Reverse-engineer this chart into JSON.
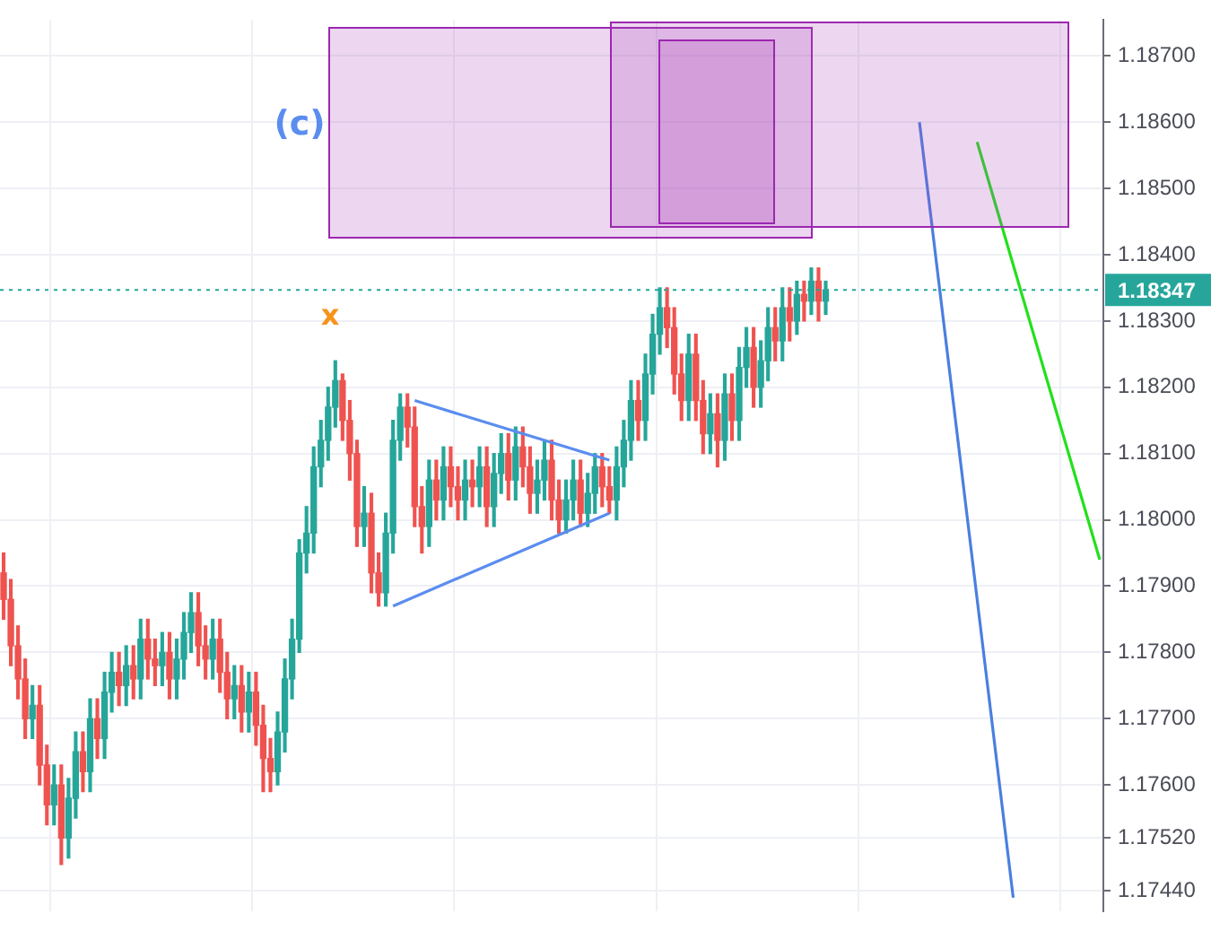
{
  "chart_data": {
    "type": "candlestick",
    "categories": [
      null,
      null,
      null,
      null,
      null,
      null,
      null,
      null,
      null,
      null,
      null,
      null,
      null,
      null,
      null,
      null,
      null,
      null,
      null,
      null,
      null,
      null,
      null,
      null,
      null,
      null,
      null,
      null,
      null,
      null,
      null,
      null,
      null,
      null,
      null,
      null,
      null,
      null,
      null,
      null,
      null,
      null,
      null,
      null,
      null,
      null,
      null,
      null,
      null,
      null,
      null,
      null,
      null,
      null,
      null,
      null,
      null,
      null,
      null,
      null,
      null,
      null,
      null,
      null,
      null,
      null,
      null,
      null,
      null,
      null,
      null,
      null,
      null,
      null,
      null,
      null,
      null,
      null,
      null,
      null,
      null,
      null,
      null,
      null,
      null,
      null,
      null,
      null,
      null,
      null,
      null,
      null,
      null,
      null,
      null,
      null,
      null,
      null,
      null,
      null,
      null,
      null,
      null,
      null,
      null,
      null,
      null,
      null,
      null,
      null,
      null,
      null,
      null,
      null,
      null,
      null,
      null,
      null,
      null,
      null,
      null,
      null,
      null,
      null,
      null,
      null,
      null,
      null,
      null,
      null,
      null,
      null,
      null,
      null,
      null,
      null,
      null,
      null,
      null,
      null,
      null,
      null,
      null,
      null,
      null,
      null,
      null,
      null,
      null,
      null,
      null,
      null,
      null
    ],
    "ohlc": [
      [
        1.1792,
        1.1795,
        1.1785,
        1.1788
      ],
      [
        1.1788,
        1.1791,
        1.1778,
        1.1781
      ],
      [
        1.1781,
        1.1784,
        1.1773,
        1.1776
      ],
      [
        1.1776,
        1.1779,
        1.1767,
        1.177
      ],
      [
        1.177,
        1.1775,
        1.1767,
        1.1772
      ],
      [
        1.1772,
        1.1775,
        1.176,
        1.1763
      ],
      [
        1.1763,
        1.1766,
        1.1754,
        1.1757
      ],
      [
        1.1757,
        1.1763,
        1.1754,
        1.176
      ],
      [
        1.176,
        1.1763,
        1.1748,
        1.1752
      ],
      [
        1.1752,
        1.1761,
        1.1749,
        1.1758
      ],
      [
        1.1758,
        1.1768,
        1.1755,
        1.1765
      ],
      [
        1.1765,
        1.1768,
        1.1759,
        1.1762
      ],
      [
        1.1762,
        1.1773,
        1.1759,
        1.177
      ],
      [
        1.177,
        1.1773,
        1.1764,
        1.1767
      ],
      [
        1.1767,
        1.1777,
        1.1764,
        1.1774
      ],
      [
        1.1774,
        1.178,
        1.1771,
        1.1777
      ],
      [
        1.1777,
        1.178,
        1.1772,
        1.1775
      ],
      [
        1.1775,
        1.1781,
        1.1772,
        1.1778
      ],
      [
        1.1778,
        1.1781,
        1.1773,
        1.1776
      ],
      [
        1.1776,
        1.1785,
        1.1773,
        1.1782
      ],
      [
        1.1782,
        1.1785,
        1.1776,
        1.1779
      ],
      [
        1.1779,
        1.1782,
        1.1775,
        1.1778
      ],
      [
        1.1778,
        1.1783,
        1.1775,
        1.178
      ],
      [
        1.178,
        1.1783,
        1.1773,
        1.1776
      ],
      [
        1.1776,
        1.1782,
        1.1773,
        1.1779
      ],
      [
        1.1779,
        1.1786,
        1.1776,
        1.1783
      ],
      [
        1.1783,
        1.1789,
        1.178,
        1.1786
      ],
      [
        1.1786,
        1.1789,
        1.1778,
        1.1781
      ],
      [
        1.1781,
        1.1784,
        1.1776,
        1.1779
      ],
      [
        1.1779,
        1.1785,
        1.1776,
        1.1782
      ],
      [
        1.1782,
        1.1785,
        1.1774,
        1.1777
      ],
      [
        1.1777,
        1.178,
        1.177,
        1.1773
      ],
      [
        1.1773,
        1.1778,
        1.177,
        1.1775
      ],
      [
        1.1775,
        1.1778,
        1.1768,
        1.1771
      ],
      [
        1.1771,
        1.1777,
        1.1768,
        1.1774
      ],
      [
        1.1774,
        1.1777,
        1.1766,
        1.1769
      ],
      [
        1.1769,
        1.1772,
        1.1759,
        1.1764
      ],
      [
        1.1764,
        1.1767,
        1.1759,
        1.1762
      ],
      [
        1.1762,
        1.1771,
        1.176,
        1.1768
      ],
      [
        1.1768,
        1.1779,
        1.1765,
        1.1776
      ],
      [
        1.1776,
        1.1785,
        1.1773,
        1.1782
      ],
      [
        1.1782,
        1.1797,
        1.178,
        1.1795
      ],
      [
        1.1795,
        1.1802,
        1.1792,
        1.1798
      ],
      [
        1.1798,
        1.1811,
        1.1795,
        1.1808
      ],
      [
        1.1808,
        1.1815,
        1.1805,
        1.1812
      ],
      [
        1.1812,
        1.182,
        1.1809,
        1.1817
      ],
      [
        1.1817,
        1.1824,
        1.1814,
        1.1821
      ],
      [
        1.1821,
        1.1822,
        1.1812,
        1.1815
      ],
      [
        1.1815,
        1.1818,
        1.1806,
        1.181
      ],
      [
        1.181,
        1.1812,
        1.1796,
        1.1799
      ],
      [
        1.1799,
        1.1805,
        1.1796,
        1.1801
      ],
      [
        1.1801,
        1.1804,
        1.1789,
        1.1792
      ],
      [
        1.1792,
        1.1795,
        1.1787,
        1.1789
      ],
      [
        1.1789,
        1.1801,
        1.1787,
        1.1798
      ],
      [
        1.1798,
        1.1815,
        1.1795,
        1.1812
      ],
      [
        1.1812,
        1.1819,
        1.1809,
        1.1817
      ],
      [
        1.1817,
        1.1819,
        1.1811,
        1.1814
      ],
      [
        1.1814,
        1.1817,
        1.1799,
        1.1802
      ],
      [
        1.1802,
        1.1805,
        1.1795,
        1.1799
      ],
      [
        1.1799,
        1.1809,
        1.1796,
        1.1806
      ],
      [
        1.1806,
        1.1809,
        1.18,
        1.1803
      ],
      [
        1.1803,
        1.1811,
        1.18,
        1.1808
      ],
      [
        1.1808,
        1.1811,
        1.1802,
        1.1805
      ],
      [
        1.1805,
        1.1808,
        1.18,
        1.1803
      ],
      [
        1.1803,
        1.1809,
        1.18,
        1.1806
      ],
      [
        1.1806,
        1.1809,
        1.1802,
        1.1805
      ],
      [
        1.1805,
        1.1811,
        1.1802,
        1.1808
      ],
      [
        1.1808,
        1.1811,
        1.1799,
        1.1802
      ],
      [
        1.1802,
        1.181,
        1.1799,
        1.1807
      ],
      [
        1.1807,
        1.1813,
        1.1804,
        1.181
      ],
      [
        1.181,
        1.1813,
        1.1803,
        1.1806
      ],
      [
        1.1806,
        1.1814,
        1.1803,
        1.1811
      ],
      [
        1.1811,
        1.1814,
        1.1805,
        1.1808
      ],
      [
        1.1808,
        1.1811,
        1.1801,
        1.1804
      ],
      [
        1.1804,
        1.1809,
        1.1801,
        1.1806
      ],
      [
        1.1806,
        1.1812,
        1.1803,
        1.1809
      ],
      [
        1.1809,
        1.1812,
        1.18,
        1.1803
      ],
      [
        1.1803,
        1.1806,
        1.1798,
        1.18
      ],
      [
        1.18,
        1.1806,
        1.1798,
        1.1803
      ],
      [
        1.1803,
        1.1809,
        1.18,
        1.1806
      ],
      [
        1.1806,
        1.1809,
        1.1799,
        1.1801
      ],
      [
        1.1801,
        1.1807,
        1.1799,
        1.1804
      ],
      [
        1.1804,
        1.181,
        1.1801,
        1.1808
      ],
      [
        1.1808,
        1.181,
        1.1802,
        1.1805
      ],
      [
        1.1805,
        1.1808,
        1.1801,
        1.1803
      ],
      [
        1.1803,
        1.1811,
        1.18,
        1.1808
      ],
      [
        1.1808,
        1.1815,
        1.1805,
        1.1812
      ],
      [
        1.1812,
        1.1821,
        1.1809,
        1.1818
      ],
      [
        1.1818,
        1.1821,
        1.1812,
        1.1815
      ],
      [
        1.1815,
        1.1825,
        1.1812,
        1.1822
      ],
      [
        1.1822,
        1.1831,
        1.1819,
        1.1828
      ],
      [
        1.1828,
        1.1835,
        1.1825,
        1.1832
      ],
      [
        1.1832,
        1.1835,
        1.1826,
        1.1829
      ],
      [
        1.1829,
        1.1832,
        1.1819,
        1.1822
      ],
      [
        1.1822,
        1.1825,
        1.1815,
        1.1818
      ],
      [
        1.1818,
        1.1828,
        1.1815,
        1.1825
      ],
      [
        1.1825,
        1.1828,
        1.1815,
        1.1818
      ],
      [
        1.1818,
        1.1821,
        1.181,
        1.1813
      ],
      [
        1.1813,
        1.1819,
        1.181,
        1.1816
      ],
      [
        1.1816,
        1.1819,
        1.1808,
        1.1812
      ],
      [
        1.1812,
        1.1822,
        1.1809,
        1.1819
      ],
      [
        1.1819,
        1.1822,
        1.1812,
        1.1815
      ],
      [
        1.1815,
        1.1826,
        1.1812,
        1.1823
      ],
      [
        1.1823,
        1.1829,
        1.182,
        1.1826
      ],
      [
        1.1826,
        1.1829,
        1.1817,
        1.182
      ],
      [
        1.182,
        1.1827,
        1.1817,
        1.1824
      ],
      [
        1.1824,
        1.1832,
        1.1821,
        1.1829
      ],
      [
        1.1829,
        1.1832,
        1.1824,
        1.1827
      ],
      [
        1.1827,
        1.1835,
        1.1824,
        1.1832
      ],
      [
        1.1832,
        1.1835,
        1.1827,
        1.183
      ],
      [
        1.183,
        1.1836,
        1.1828,
        1.1834
      ],
      [
        1.1834,
        1.1836,
        1.183,
        1.1833
      ],
      [
        1.1833,
        1.1838,
        1.1831,
        1.1836
      ],
      [
        1.1836,
        1.1838,
        1.183,
        1.1833
      ],
      [
        1.1833,
        1.1836,
        1.1831,
        1.18347
      ],
      null,
      null,
      null,
      null,
      null,
      null,
      null,
      null,
      null,
      null,
      null,
      null,
      null,
      null,
      null,
      null,
      null,
      null,
      null,
      null,
      null,
      null,
      null,
      null,
      null,
      null,
      null,
      null,
      null,
      null,
      null,
      null,
      null,
      null,
      null,
      null,
      null,
      null
    ],
    "series": [
      {
        "type": "line",
        "color": "#5b8def",
        "values": [
          null,
          null,
          null,
          null,
          null,
          null,
          null,
          null,
          null,
          null,
          null,
          null,
          null,
          null,
          null,
          null,
          null,
          null,
          null,
          null,
          null,
          null,
          null,
          null,
          null,
          null,
          null,
          null,
          null,
          null,
          null,
          null,
          null,
          null,
          null,
          null,
          null,
          null,
          null,
          null,
          null,
          null,
          null,
          null,
          null,
          null,
          null,
          null,
          null,
          null,
          null,
          null,
          null,
          null,
          null,
          null,
          null,
          1.1818,
          null,
          null,
          null,
          null,
          null,
          null,
          null,
          null,
          null,
          null,
          null,
          null,
          null,
          null,
          null,
          null,
          null,
          null,
          null,
          null,
          null,
          null,
          null,
          null,
          null,
          null,
          1.1809,
          null,
          null,
          null,
          null,
          null,
          null,
          null,
          null,
          null,
          null,
          null,
          null,
          null,
          null,
          null,
          null,
          null,
          null,
          null,
          null,
          null,
          null,
          null,
          null,
          null,
          null,
          null,
          null,
          null,
          null,
          null,
          null,
          null,
          null,
          null,
          null,
          null,
          null,
          null,
          null,
          null,
          null,
          null,
          null,
          null,
          null,
          null,
          null,
          null,
          null,
          null,
          null,
          null,
          null,
          null,
          null,
          null,
          null,
          null,
          null,
          null,
          null,
          null,
          null,
          null,
          null,
          null,
          null
        ]
      },
      {
        "type": "line",
        "color": "#5b8def",
        "values": [
          null,
          null,
          null,
          null,
          null,
          null,
          null,
          null,
          null,
          null,
          null,
          null,
          null,
          null,
          null,
          null,
          null,
          null,
          null,
          null,
          null,
          null,
          null,
          null,
          null,
          null,
          null,
          null,
          null,
          null,
          null,
          null,
          null,
          null,
          null,
          null,
          null,
          null,
          null,
          null,
          null,
          null,
          null,
          null,
          null,
          null,
          null,
          null,
          null,
          null,
          null,
          null,
          null,
          null,
          1.1787,
          null,
          null,
          null,
          null,
          null,
          null,
          null,
          null,
          null,
          null,
          null,
          null,
          null,
          null,
          null,
          null,
          null,
          null,
          null,
          null,
          null,
          null,
          null,
          null,
          null,
          null,
          null,
          null,
          null,
          1.1801,
          null,
          null,
          null,
          null,
          null,
          null,
          null,
          null,
          null,
          null,
          null,
          null,
          null,
          null,
          null,
          null,
          null,
          null,
          null,
          null,
          null,
          null,
          null,
          null,
          null,
          null,
          null,
          null,
          null,
          null,
          null,
          null,
          null,
          null,
          null,
          null,
          null,
          null,
          null,
          null,
          null,
          null,
          null,
          null,
          null,
          null,
          null,
          null,
          null,
          null,
          null,
          null,
          null,
          null,
          null,
          null,
          null,
          null,
          null,
          null,
          null,
          null,
          null,
          null,
          null,
          null,
          null,
          null
        ]
      },
      {
        "type": "line",
        "color": "#4a7fe0",
        "values": [
          null,
          null,
          null,
          null,
          null,
          null,
          null,
          null,
          null,
          null,
          null,
          null,
          null,
          null,
          null,
          null,
          null,
          null,
          null,
          null,
          null,
          null,
          null,
          null,
          null,
          null,
          null,
          null,
          null,
          null,
          null,
          null,
          null,
          null,
          null,
          null,
          null,
          null,
          null,
          null,
          null,
          null,
          null,
          null,
          null,
          null,
          null,
          null,
          null,
          null,
          null,
          null,
          null,
          null,
          null,
          null,
          null,
          null,
          null,
          null,
          null,
          null,
          null,
          null,
          null,
          null,
          null,
          null,
          null,
          null,
          null,
          null,
          null,
          null,
          null,
          null,
          null,
          null,
          null,
          null,
          null,
          null,
          null,
          null,
          null,
          null,
          null,
          null,
          null,
          null,
          null,
          null,
          null,
          null,
          null,
          null,
          null,
          null,
          null,
          null,
          null,
          null,
          null,
          null,
          null,
          null,
          null,
          null,
          null,
          null,
          null,
          null,
          null,
          null,
          null,
          null,
          null,
          null,
          null,
          null,
          null,
          null,
          null,
          null,
          null,
          null,
          null,
          1.186,
          null,
          null,
          null,
          null,
          null,
          null,
          null,
          null,
          null,
          null,
          null,
          null,
          1.1743,
          null,
          null,
          null,
          null,
          null,
          null,
          null,
          null,
          null,
          null,
          null,
          null
        ]
      },
      {
        "type": "line",
        "color": "#22e01c",
        "values": [
          null,
          null,
          null,
          null,
          null,
          null,
          null,
          null,
          null,
          null,
          null,
          null,
          null,
          null,
          null,
          null,
          null,
          null,
          null,
          null,
          null,
          null,
          null,
          null,
          null,
          null,
          null,
          null,
          null,
          null,
          null,
          null,
          null,
          null,
          null,
          null,
          null,
          null,
          null,
          null,
          null,
          null,
          null,
          null,
          null,
          null,
          null,
          null,
          null,
          null,
          null,
          null,
          null,
          null,
          null,
          null,
          null,
          null,
          null,
          null,
          null,
          null,
          null,
          null,
          null,
          null,
          null,
          null,
          null,
          null,
          null,
          null,
          null,
          null,
          null,
          null,
          null,
          null,
          null,
          null,
          null,
          null,
          null,
          null,
          null,
          null,
          null,
          null,
          null,
          null,
          null,
          null,
          null,
          null,
          null,
          null,
          null,
          null,
          null,
          null,
          null,
          null,
          null,
          null,
          null,
          null,
          null,
          null,
          null,
          null,
          null,
          null,
          null,
          null,
          null,
          null,
          null,
          null,
          null,
          null,
          null,
          null,
          null,
          null,
          null,
          null,
          null,
          null,
          null,
          null,
          null,
          null,
          null,
          null,
          null,
          1.1857,
          null,
          null,
          null,
          null,
          null,
          null,
          null,
          null,
          null,
          null,
          null,
          null,
          null,
          null,
          null,
          null,
          1.1794
        ]
      }
    ],
    "ylim": [
      1.1741,
      1.18754
    ],
    "yticks": [
      {
        "value": 1.187,
        "label": "1.18700"
      },
      {
        "value": 1.186,
        "label": "1.18600"
      },
      {
        "value": 1.185,
        "label": "1.18500"
      },
      {
        "value": 1.184,
        "label": "1.18400"
      },
      {
        "value": 1.183,
        "label": "1.18300"
      },
      {
        "value": 1.182,
        "label": "1.18200"
      },
      {
        "value": 1.181,
        "label": "1.18100"
      },
      {
        "value": 1.18,
        "label": "1.18000"
      },
      {
        "value": 1.179,
        "label": "1.17900"
      },
      {
        "value": 1.178,
        "label": "1.17800"
      },
      {
        "value": 1.177,
        "label": "1.17700"
      },
      {
        "value": 1.176,
        "label": "1.17600"
      },
      {
        "value": 1.1752,
        "label": "1.17520"
      },
      {
        "value": 1.1744,
        "label": "1.17440"
      }
    ],
    "grid": true,
    "tick_labels": "y",
    "ref_lines": [
      {
        "axis": "y",
        "value": 1.18347,
        "label": "1.18347",
        "color": "#26a69a",
        "line_style": "dotted"
      }
    ],
    "annotations": [
      "(c)",
      "x"
    ]
  }
}
